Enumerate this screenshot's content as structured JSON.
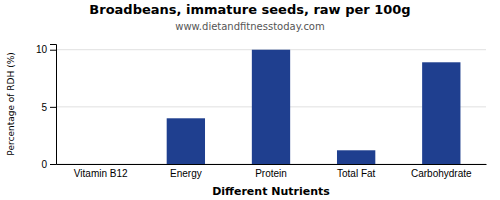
{
  "chart_data": {
    "type": "bar",
    "title": "Broadbeans, immature seeds, raw per 100g",
    "subtitle": "www.dietandfitnesstoday.com",
    "xlabel": "Different Nutrients",
    "ylabel": "Percentage of RDH (%)",
    "categories": [
      "Vitamin B12",
      "Energy",
      "Protein",
      "Total Fat",
      "Carbohydrate"
    ],
    "values": [
      0,
      4.0,
      10.0,
      1.2,
      8.9
    ],
    "color": "#1F3F8F",
    "ylim": [
      0,
      10.5
    ],
    "yticks": [
      0,
      5,
      10
    ],
    "grid": true
  }
}
